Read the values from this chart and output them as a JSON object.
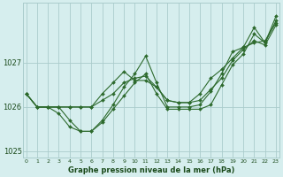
{
  "xlabel": "Graphe pression niveau de la mer (hPa)",
  "hours": [
    0,
    1,
    2,
    3,
    4,
    5,
    6,
    7,
    8,
    9,
    10,
    11,
    12,
    13,
    14,
    15,
    16,
    17,
    18,
    19,
    20,
    21,
    22,
    23
  ],
  "series": [
    [
      1026.3,
      1026.0,
      1026.0,
      1025.85,
      1025.55,
      1025.45,
      1025.45,
      1025.65,
      1025.95,
      1026.25,
      1026.55,
      1026.75,
      1026.3,
      1025.95,
      1025.95,
      1025.95,
      1025.95,
      1026.05,
      1026.5,
      1026.95,
      1027.2,
      1027.65,
      1027.45,
      1027.95
    ],
    [
      1026.3,
      1026.0,
      1026.0,
      1026.0,
      1025.7,
      1025.45,
      1025.45,
      1025.7,
      1026.05,
      1026.45,
      1026.75,
      1027.15,
      1026.55,
      1026.0,
      1026.0,
      1026.0,
      1026.05,
      1026.35,
      1026.75,
      1027.25,
      1027.35,
      1027.8,
      1027.45,
      1028.05
    ],
    [
      1026.3,
      1026.0,
      1026.0,
      1026.0,
      1026.0,
      1026.0,
      1026.0,
      1026.15,
      1026.3,
      1026.55,
      1026.65,
      1026.7,
      1026.45,
      1026.15,
      1026.1,
      1026.1,
      1026.15,
      1026.4,
      1026.65,
      1027.05,
      1027.3,
      1027.5,
      1027.4,
      1027.85
    ],
    [
      1026.3,
      1026.0,
      1026.0,
      1026.0,
      1026.0,
      1026.0,
      1026.0,
      1026.3,
      1026.55,
      1026.8,
      1026.6,
      1026.6,
      1026.45,
      1026.15,
      1026.1,
      1026.1,
      1026.3,
      1026.65,
      1026.85,
      1027.1,
      1027.35,
      1027.45,
      1027.5,
      1027.9
    ]
  ],
  "line_color": "#2d6a2d",
  "bg_color": "#d6eeee",
  "grid_color": "#aacccc",
  "label_color": "#1a4a1a",
  "ylim": [
    1024.85,
    1028.35
  ],
  "yticks": [
    1025,
    1026,
    1027
  ],
  "marker": "D",
  "marker_size": 2.0,
  "linewidth": 0.8
}
